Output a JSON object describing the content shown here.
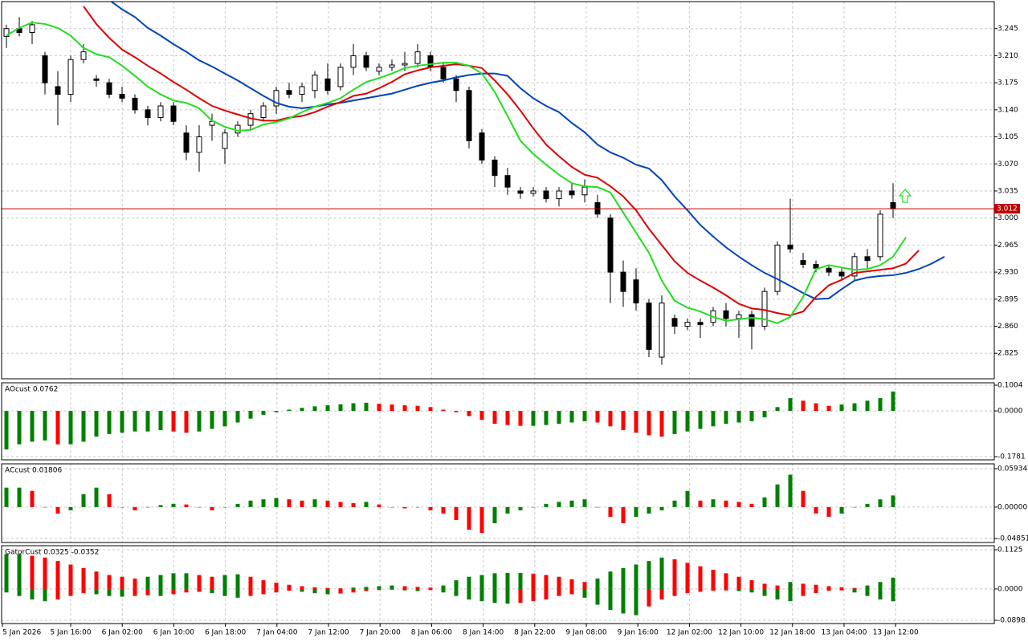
{
  "chart_data": [
    {
      "type": "candlestick",
      "xlabels": [
        "5 Jan 2026",
        "5 Jan 16:00",
        "6 Jan 02:00",
        "6 Jan 10:00",
        "6 Jan 18:00",
        "7 Jan 04:00",
        "7 Jan 12:00",
        "7 Jan 20:00",
        "8 Jan 06:00",
        "8 Jan 14:00",
        "8 Jan 22:00",
        "9 Jan 08:00",
        "9 Jan 16:00",
        "12 Jan 02:00",
        "12 Jan 10:00",
        "12 Jan 18:00",
        "13 Jan 04:00",
        "13 Jan 12:00"
      ],
      "open": [
        3.235,
        3.245,
        3.24,
        3.21,
        3.17,
        3.16,
        3.205,
        3.18,
        3.175,
        3.16,
        3.155,
        3.14,
        3.13,
        3.145,
        3.11,
        3.085,
        3.12,
        3.09,
        3.11,
        3.12,
        3.13,
        3.145,
        3.165,
        3.16,
        3.165,
        3.18,
        3.17,
        3.195,
        3.21,
        3.19,
        3.195,
        3.198,
        3.2,
        3.21,
        3.195,
        3.18,
        3.165,
        3.11,
        3.075,
        3.055,
        3.035,
        3.032,
        3.035,
        3.025,
        3.035,
        3.03,
        3.02,
        3.0,
        2.93,
        2.92,
        2.89,
        2.82,
        2.87,
        2.86,
        2.865,
        2.865,
        2.88,
        2.87,
        2.875,
        2.86,
        2.905,
        2.965,
        2.945,
        2.94,
        2.935,
        2.93,
        2.925,
        2.95,
        2.95,
        3.02
      ],
      "high": [
        3.25,
        3.26,
        3.255,
        3.215,
        3.19,
        3.21,
        3.225,
        3.185,
        3.18,
        3.17,
        3.16,
        3.145,
        3.15,
        3.15,
        3.12,
        3.12,
        3.135,
        3.115,
        3.125,
        3.14,
        3.15,
        3.17,
        3.175,
        3.175,
        3.19,
        3.2,
        3.2,
        3.225,
        3.215,
        3.2,
        3.205,
        3.215,
        3.225,
        3.215,
        3.2,
        3.185,
        3.17,
        3.115,
        3.08,
        3.065,
        3.04,
        3.04,
        3.04,
        3.04,
        3.045,
        3.05,
        3.03,
        3.005,
        2.945,
        2.935,
        2.895,
        2.9,
        2.875,
        2.87,
        2.87,
        2.885,
        2.89,
        2.88,
        2.88,
        2.91,
        2.97,
        3.025,
        2.955,
        2.945,
        2.94,
        2.935,
        2.955,
        2.96,
        3.01,
        3.045
      ],
      "low": [
        3.22,
        3.235,
        3.225,
        3.16,
        3.12,
        3.15,
        3.2,
        3.17,
        3.155,
        3.15,
        3.135,
        3.12,
        3.125,
        3.12,
        3.075,
        3.06,
        3.1,
        3.07,
        3.105,
        3.115,
        3.125,
        3.135,
        3.155,
        3.15,
        3.155,
        3.16,
        3.165,
        3.185,
        3.19,
        3.185,
        3.19,
        3.19,
        3.195,
        3.19,
        3.175,
        3.15,
        3.09,
        3.07,
        3.04,
        3.03,
        3.025,
        3.028,
        3.02,
        3.015,
        3.025,
        3.02,
        3.0,
        2.89,
        2.885,
        2.88,
        2.82,
        2.81,
        2.85,
        2.855,
        2.845,
        2.86,
        2.86,
        2.845,
        2.83,
        2.855,
        2.9,
        2.955,
        2.935,
        2.93,
        2.925,
        2.92,
        2.92,
        2.935,
        2.945,
        3.0
      ],
      "close": [
        3.245,
        3.24,
        3.25,
        3.175,
        3.16,
        3.205,
        3.215,
        3.178,
        3.16,
        3.155,
        3.14,
        3.13,
        3.145,
        3.125,
        3.085,
        3.105,
        3.125,
        3.11,
        3.12,
        3.135,
        3.145,
        3.165,
        3.16,
        3.17,
        3.185,
        3.165,
        3.195,
        3.21,
        3.195,
        3.195,
        3.198,
        3.2,
        3.215,
        3.195,
        3.18,
        3.165,
        3.1,
        3.075,
        3.055,
        3.04,
        3.032,
        3.035,
        3.025,
        3.035,
        3.03,
        3.04,
        3.005,
        2.93,
        2.905,
        2.89,
        2.83,
        2.89,
        2.86,
        2.865,
        2.862,
        2.88,
        2.87,
        2.875,
        2.86,
        2.905,
        2.965,
        2.96,
        2.94,
        2.935,
        2.93,
        2.925,
        2.95,
        2.945,
        3.005,
        3.012
      ],
      "series": [
        {
          "color": "#0044bb",
          "values": [
            null,
            null,
            null,
            null,
            null,
            null,
            null,
            null,
            3.282,
            3.27,
            3.26,
            3.246,
            3.236,
            3.225,
            3.215,
            3.204,
            3.196,
            3.187,
            3.178,
            3.168,
            3.158,
            3.149,
            3.144,
            3.142,
            3.144,
            3.147,
            3.149,
            3.152,
            3.155,
            3.158,
            3.161,
            3.166,
            3.171,
            3.175,
            3.178,
            3.182,
            3.185,
            3.187,
            3.187,
            3.184,
            3.168,
            3.155,
            3.145,
            3.137,
            3.123,
            3.111,
            3.095,
            3.085,
            3.078,
            3.069,
            3.064,
            3.049,
            3.028,
            3.01,
            2.991,
            2.976,
            2.962,
            2.95,
            2.939,
            2.929,
            2.921,
            2.912,
            2.903,
            2.895,
            2.896,
            2.908,
            2.919,
            2.923,
            2.925,
            2.926,
            2.929,
            2.934,
            2.941,
            2.95
          ]
        },
        {
          "color": "#dd0000",
          "values": [
            null,
            null,
            null,
            null,
            null,
            null,
            3.274,
            3.251,
            3.233,
            3.218,
            3.208,
            3.197,
            3.187,
            3.176,
            3.166,
            3.155,
            3.145,
            3.139,
            3.134,
            3.129,
            3.126,
            3.126,
            3.13,
            3.132,
            3.137,
            3.144,
            3.15,
            3.158,
            3.161,
            3.168,
            3.176,
            3.186,
            3.191,
            3.195,
            3.197,
            3.199,
            3.197,
            3.194,
            3.178,
            3.16,
            3.139,
            3.116,
            3.095,
            3.08,
            3.066,
            3.056,
            3.052,
            3.041,
            3.028,
            3.01,
            2.986,
            2.965,
            2.944,
            2.929,
            2.919,
            2.91,
            2.9,
            2.889,
            2.883,
            2.881,
            2.877,
            2.874,
            2.879,
            2.898,
            2.913,
            2.92,
            2.929,
            2.931,
            2.933,
            2.935,
            2.941,
            2.958
          ]
        },
        {
          "color": "#22dd22",
          "values": [
            3.236,
            3.246,
            3.253,
            3.251,
            3.246,
            3.236,
            3.22,
            3.212,
            3.208,
            3.197,
            3.184,
            3.17,
            3.16,
            3.152,
            3.149,
            3.142,
            3.126,
            3.118,
            3.113,
            3.114,
            3.121,
            3.124,
            3.129,
            3.137,
            3.144,
            3.149,
            3.155,
            3.166,
            3.176,
            3.181,
            3.187,
            3.194,
            3.197,
            3.199,
            3.201,
            3.201,
            3.197,
            3.187,
            3.163,
            3.132,
            3.1,
            3.083,
            3.069,
            3.056,
            3.045,
            3.041,
            3.04,
            3.033,
            3.007,
            2.981,
            2.955,
            2.919,
            2.893,
            2.884,
            2.879,
            2.872,
            2.867,
            2.869,
            2.871,
            2.869,
            2.864,
            2.872,
            2.898,
            2.934,
            2.939,
            2.936,
            2.933,
            2.934,
            2.939,
            2.95,
            2.975
          ]
        }
      ],
      "ylim": [
        2.792,
        3.28
      ],
      "yticks": [
        3.245,
        {
          "value": 3.21,
          "label": "3.210"
        },
        3.175,
        {
          "value": 3.14,
          "label": "3.140"
        },
        3.105,
        {
          "value": 3.07,
          "label": "3.070"
        },
        3.035,
        {
          "value": 3,
          "label": "3.000"
        },
        2.965,
        {
          "value": 2.93,
          "label": "2.930"
        },
        2.895,
        {
          "value": 2.86,
          "label": "2.860"
        },
        2.825
      ],
      "price_line": 3.012,
      "grid": true
    },
    {
      "type": "histogram",
      "title": "AOcust 0.0762",
      "values": [
        -0.15,
        -0.13,
        -0.12,
        -0.115,
        -0.13,
        -0.13,
        -0.12,
        -0.1,
        -0.09,
        -0.085,
        -0.08,
        -0.08,
        -0.075,
        -0.08,
        -0.085,
        -0.08,
        -0.07,
        -0.06,
        -0.045,
        -0.03,
        -0.015,
        -0.005,
        0.005,
        0.012,
        0.018,
        0.022,
        0.026,
        0.03,
        0.032,
        0.028,
        0.025,
        0.022,
        0.02,
        0.015,
        0.005,
        -0.005,
        -0.02,
        -0.035,
        -0.05,
        -0.055,
        -0.058,
        -0.058,
        -0.055,
        -0.05,
        -0.045,
        -0.04,
        -0.045,
        -0.06,
        -0.075,
        -0.085,
        -0.095,
        -0.1,
        -0.09,
        -0.08,
        -0.07,
        -0.06,
        -0.05,
        -0.045,
        -0.04,
        -0.025,
        0.015,
        0.05,
        0.04,
        0.03,
        0.02,
        0.025,
        0.03,
        0.04,
        0.05,
        0.076
      ],
      "ylim": [
        -0.1906,
        0.1098
      ],
      "yticks": [
        0.1004,
        {
          "value": 0,
          "label": "0.0000"
        },
        -0.1781
      ]
    },
    {
      "type": "histogram",
      "title": "ACcust 0.01806",
      "values": [
        0.03,
        0.03,
        0.025,
        0,
        -0.01,
        -0.005,
        0.02,
        0.03,
        0.02,
        0,
        -0.005,
        0,
        0.003,
        0.005,
        0.004,
        0,
        -0.005,
        0,
        0.005,
        0.01,
        0.012,
        0.014,
        0.012,
        0.01,
        0.012,
        0.01,
        0.008,
        0.006,
        0.008,
        0.004,
        0,
        -0.002,
        0,
        -0.005,
        -0.01,
        -0.02,
        -0.035,
        -0.04,
        -0.025,
        -0.01,
        -0.005,
        0,
        0.005,
        0.008,
        0.01,
        0.012,
        0,
        -0.015,
        -0.025,
        -0.015,
        -0.01,
        -0.005,
        0.01,
        0.025,
        0.01,
        0.012,
        0.01,
        0.008,
        0.005,
        0.015,
        0.035,
        0.05,
        0.025,
        -0.01,
        -0.015,
        -0.01,
        0,
        0.005,
        0.012,
        0.018
      ],
      "ylim": [
        -0.0547,
        0.0668
      ],
      "yticks": [
        0.05934,
        {
          "value": 0,
          "label": "0.00000"
        },
        -0.04851
      ]
    },
    {
      "type": "gator",
      "title": "GatorCust 0.0325 -0.0352",
      "upper": [
        0.1,
        0.1,
        0.095,
        0.09,
        0.08,
        0.07,
        0.06,
        0.05,
        0.04,
        0.035,
        0.03,
        0.035,
        0.04,
        0.045,
        0.045,
        0.04,
        0.035,
        0.04,
        0.042,
        0.035,
        0.025,
        0.018,
        0.012,
        0.008,
        0.005,
        0.003,
        0.002,
        0.004,
        0.006,
        0.008,
        0.01,
        0.008,
        0.006,
        0.004,
        0.01,
        0.025,
        0.035,
        0.04,
        0.045,
        0.046,
        0.046,
        0.044,
        0.04,
        0.035,
        0.028,
        0.02,
        0.03,
        0.05,
        0.06,
        0.07,
        0.08,
        0.09,
        0.085,
        0.075,
        0.065,
        0.055,
        0.045,
        0.035,
        0.025,
        0.015,
        0.01,
        0.02,
        0.015,
        0.012,
        0.008,
        0.005,
        0.003,
        0.01,
        0.02,
        0.0325
      ],
      "lower": [
        -0.01,
        -0.02,
        -0.03,
        -0.035,
        -0.03,
        -0.02,
        -0.012,
        -0.015,
        -0.02,
        -0.022,
        -0.02,
        -0.018,
        -0.02,
        -0.015,
        -0.01,
        -0.008,
        -0.012,
        -0.02,
        -0.025,
        -0.02,
        -0.015,
        -0.01,
        -0.005,
        -0.008,
        -0.012,
        -0.015,
        -0.013,
        -0.01,
        -0.006,
        -0.003,
        -0.002,
        -0.004,
        -0.006,
        -0.003,
        -0.01,
        -0.02,
        -0.03,
        -0.035,
        -0.04,
        -0.042,
        -0.04,
        -0.035,
        -0.03,
        -0.02,
        -0.015,
        -0.025,
        -0.045,
        -0.06,
        -0.07,
        -0.075,
        -0.05,
        -0.03,
        -0.02,
        -0.012,
        -0.008,
        -0.005,
        -0.004,
        -0.006,
        -0.01,
        -0.02,
        -0.03,
        -0.035,
        -0.02,
        -0.012,
        -0.005,
        -0.004,
        -0.01,
        -0.02,
        -0.03,
        -0.0352
      ],
      "ylim": [
        -0.099,
        0.124
      ],
      "yticks": [
        0.1125,
        {
          "value": 0,
          "label": "0.0000"
        },
        -0.0898
      ]
    }
  ]
}
